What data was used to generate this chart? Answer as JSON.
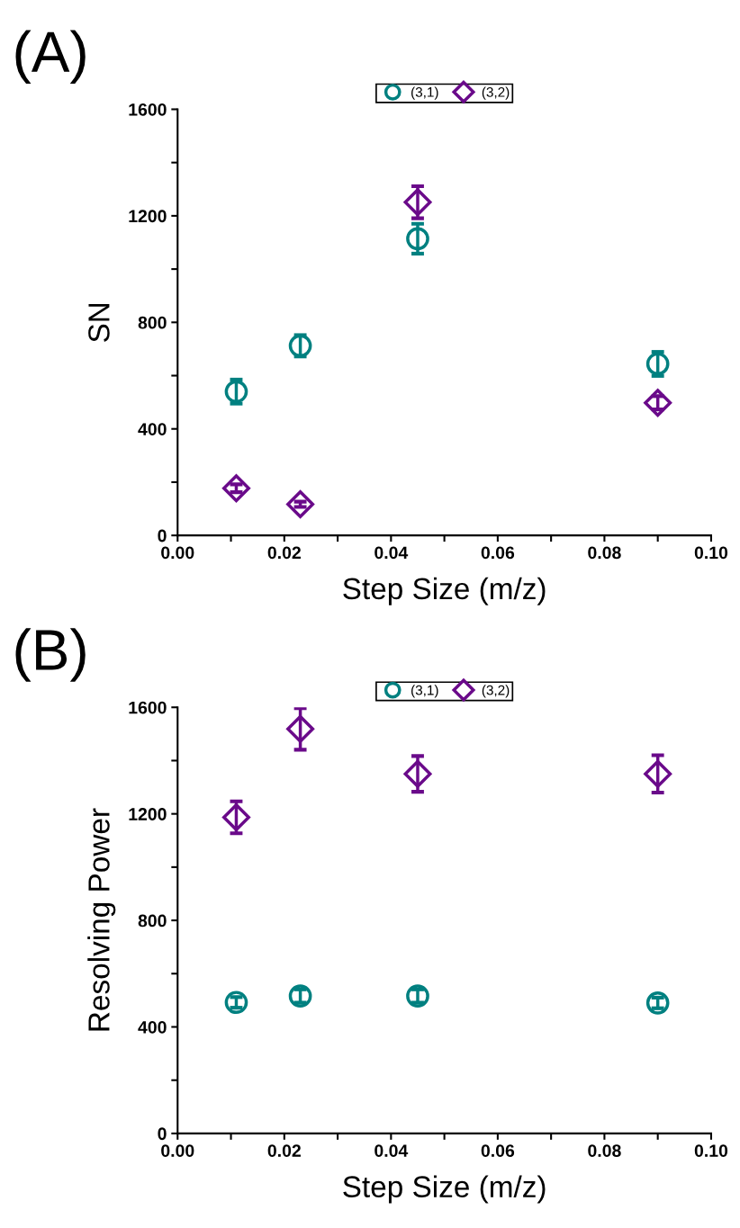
{
  "chart_data": [
    {
      "type": "scatter",
      "title": "(A)",
      "xlabel": "Step Size (m/z)",
      "ylabel": "SN",
      "legend": "top",
      "x": [
        0.011,
        0.023,
        0.045,
        0.09
      ],
      "xlim": [
        0,
        0.1
      ],
      "xticks": [
        {
          "value": 0,
          "label": "0.00"
        },
        {
          "value": 0.01,
          "label": null
        },
        {
          "value": 0.02,
          "label": "0.02"
        },
        {
          "value": 0.03,
          "label": null
        },
        {
          "value": 0.04,
          "label": "0.04"
        },
        {
          "value": 0.05,
          "label": null
        },
        {
          "value": 0.06,
          "label": "0.06"
        },
        {
          "value": 0.07,
          "label": null
        },
        {
          "value": 0.08,
          "label": "0.08"
        },
        {
          "value": 0.09,
          "label": null
        },
        {
          "value": 0.1,
          "label": "0.10"
        }
      ],
      "ylim": [
        0,
        1600
      ],
      "yticks": [
        0,
        {
          "value": 200,
          "label": null
        },
        400,
        {
          "value": 600,
          "label": null
        },
        800,
        {
          "value": 1000,
          "label": null
        },
        1200,
        {
          "value": 1400,
          "label": null
        },
        1600
      ],
      "series": [
        {
          "name": "(3,1)",
          "color": "#008080",
          "marker": "circle",
          "values": [
            540,
            712,
            1114,
            644
          ],
          "errors": [
            45,
            40,
            56,
            45
          ]
        },
        {
          "name": "(3,2)",
          "color": "#6a0a8a",
          "marker": "diamond",
          "values": [
            177,
            117,
            1251,
            498
          ],
          "errors": [
            15,
            10,
            60,
            25
          ]
        }
      ]
    },
    {
      "type": "scatter",
      "title": "(B)",
      "xlabel": "Step Size (m/z)",
      "ylabel": "Resolving Power",
      "legend": "top",
      "x": [
        0.011,
        0.023,
        0.045,
        0.09
      ],
      "xlim": [
        0,
        0.1
      ],
      "xticks": [
        {
          "value": 0,
          "label": "0.00"
        },
        {
          "value": 0.01,
          "label": null
        },
        {
          "value": 0.02,
          "label": "0.02"
        },
        {
          "value": 0.03,
          "label": null
        },
        {
          "value": 0.04,
          "label": "0.04"
        },
        {
          "value": 0.05,
          "label": null
        },
        {
          "value": 0.06,
          "label": "0.06"
        },
        {
          "value": 0.07,
          "label": null
        },
        {
          "value": 0.08,
          "label": "0.08"
        },
        {
          "value": 0.09,
          "label": null
        },
        {
          "value": 0.1,
          "label": "0.10"
        }
      ],
      "ylim": [
        0,
        1600
      ],
      "yticks": [
        0,
        {
          "value": 200,
          "label": null
        },
        400,
        {
          "value": 600,
          "label": null
        },
        800,
        {
          "value": 1000,
          "label": null
        },
        1200,
        {
          "value": 1400,
          "label": null
        },
        1600
      ],
      "series": [
        {
          "name": "(3,1)",
          "color": "#008080",
          "marker": "circle",
          "values": [
            492,
            516,
            516,
            490
          ],
          "errors": [
            20,
            25,
            25,
            20
          ]
        },
        {
          "name": "(3,2)",
          "color": "#6a0a8a",
          "marker": "diamond",
          "values": [
            1187,
            1519,
            1350,
            1350
          ],
          "errors": [
            60,
            78,
            67,
            70
          ]
        }
      ]
    }
  ]
}
